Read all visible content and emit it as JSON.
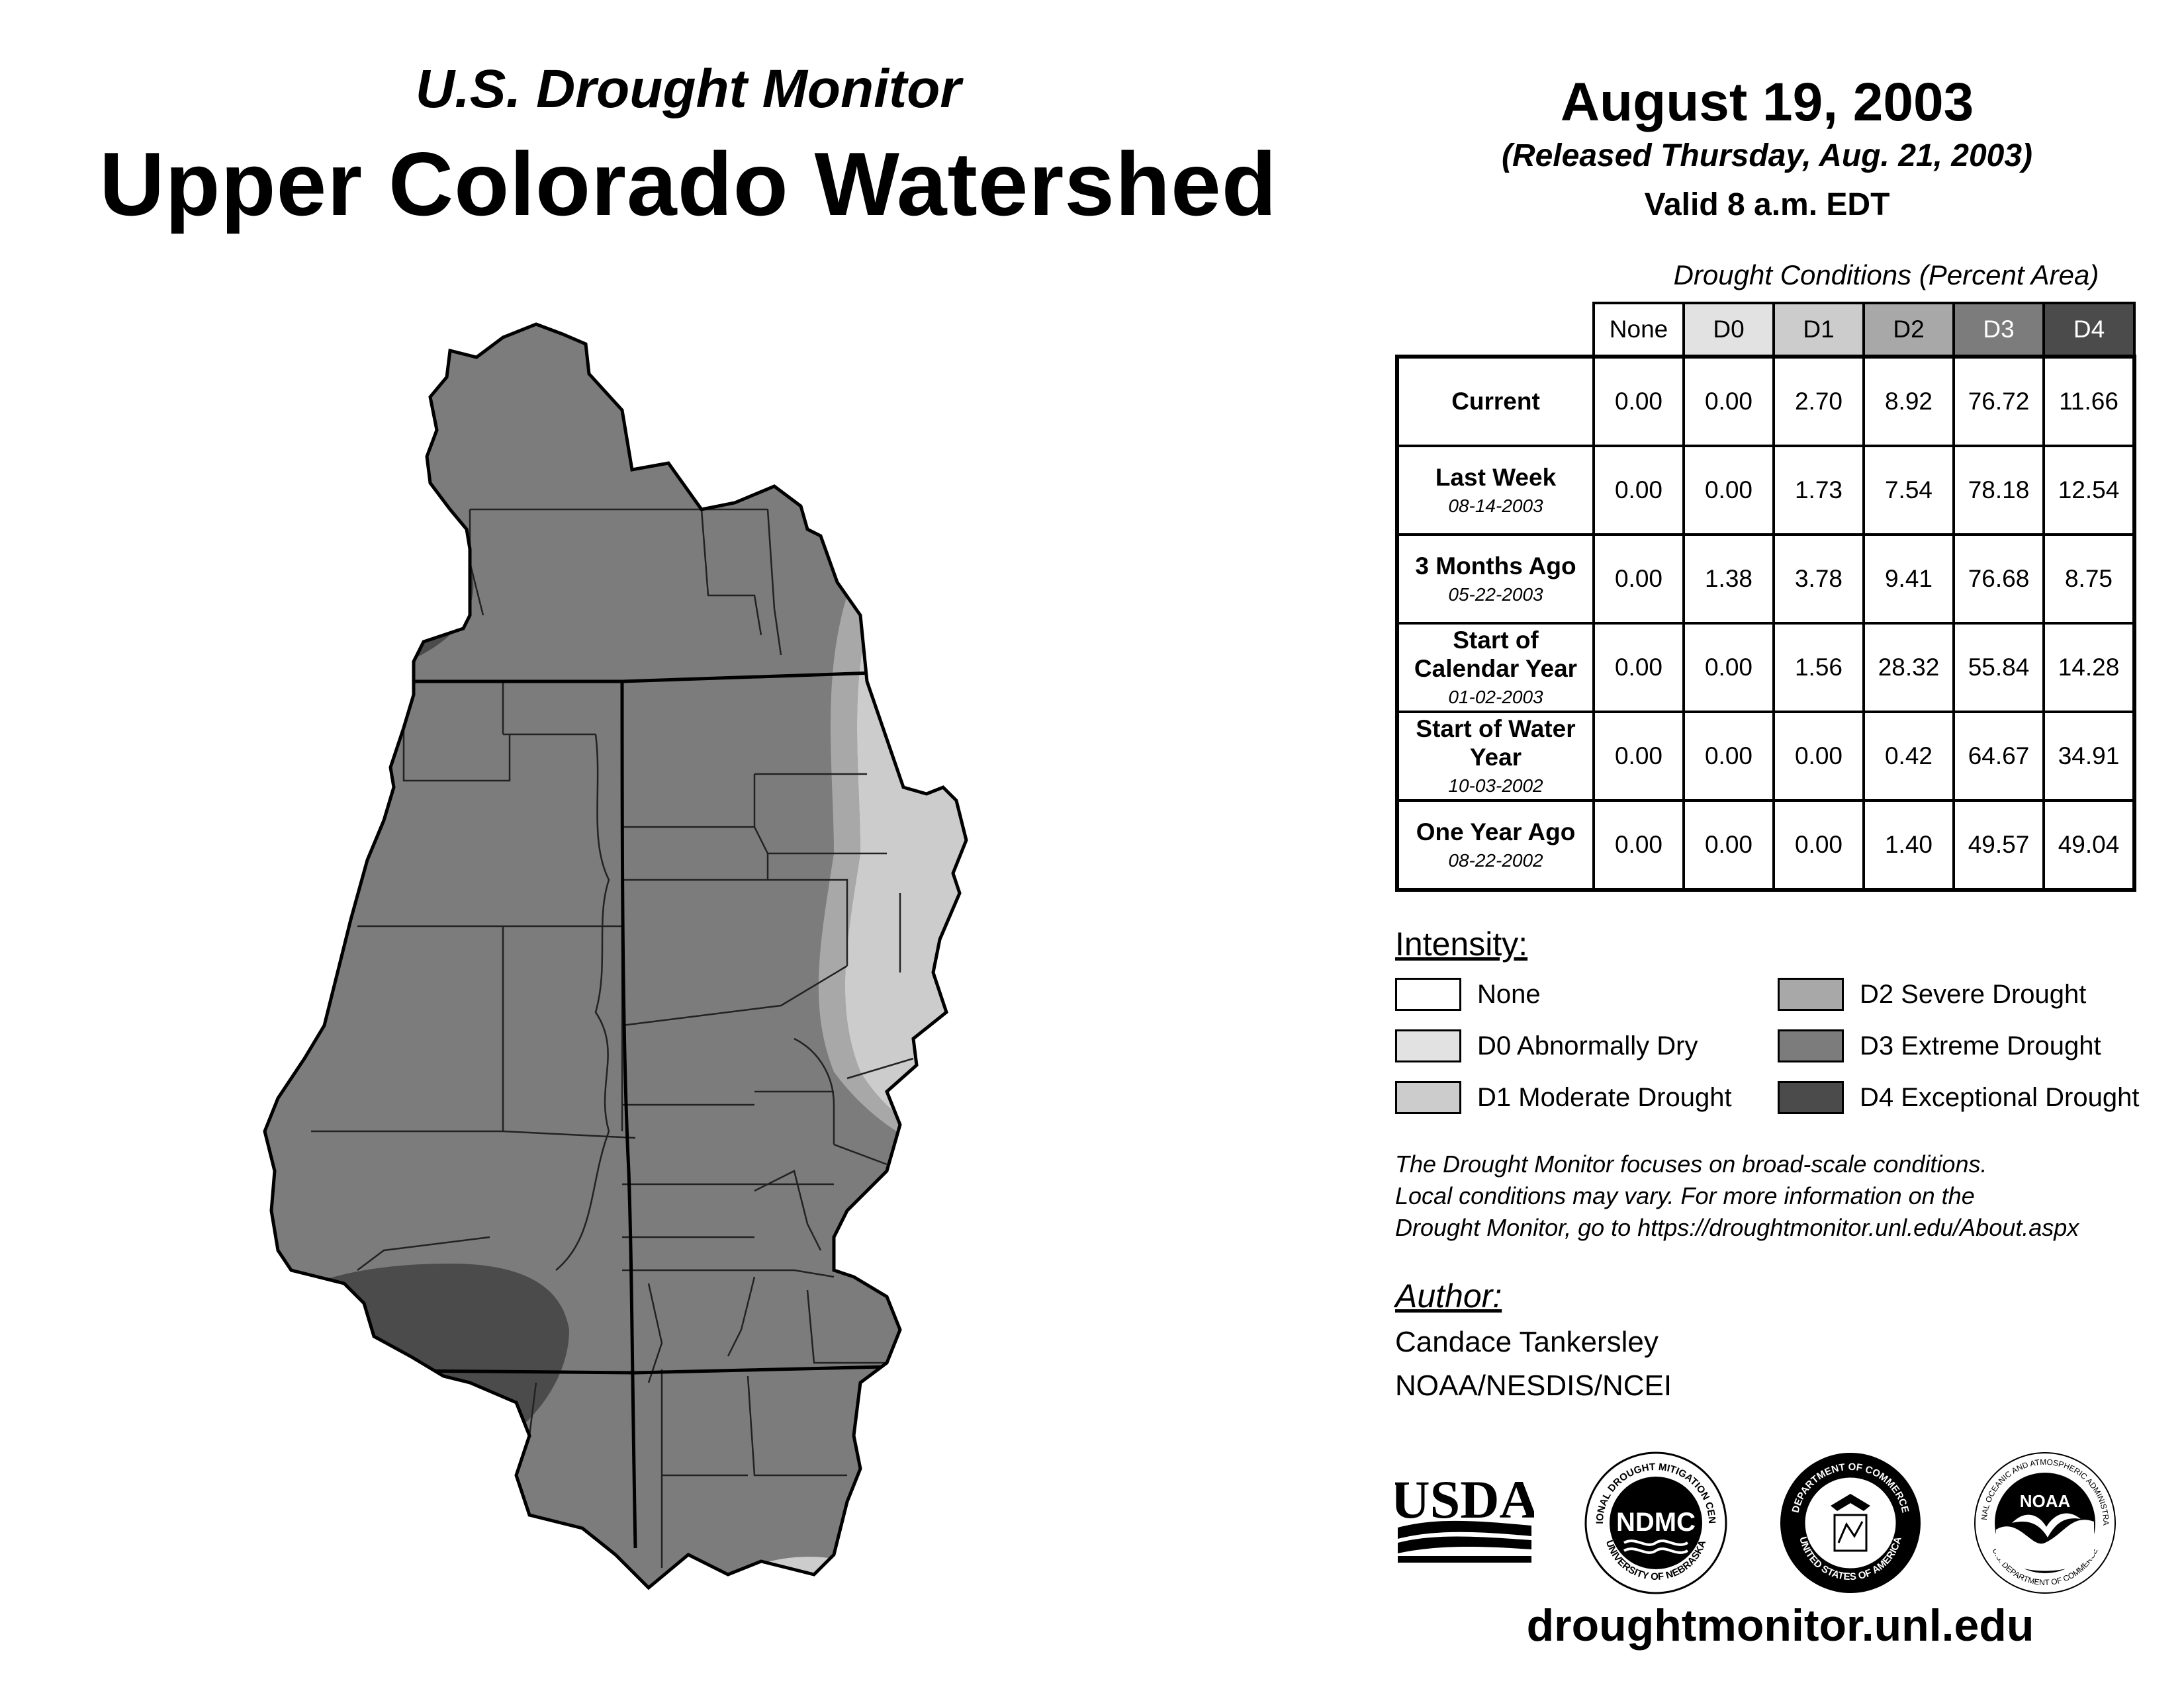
{
  "header": {
    "subtitle": "U.S. Drought Monitor",
    "title": "Upper Colorado Watershed",
    "date": "August 19, 2003",
    "released": "(Released Thursday, Aug. 21, 2003)",
    "valid": "Valid 8 a.m. EDT"
  },
  "table": {
    "caption": "Drought Conditions (Percent Area)",
    "columns": [
      "None",
      "D0",
      "D1",
      "D2",
      "D3",
      "D4"
    ],
    "rows": [
      {
        "label": "Current",
        "date": "",
        "values": [
          "0.00",
          "0.00",
          "2.70",
          "8.92",
          "76.72",
          "11.66"
        ]
      },
      {
        "label": "Last Week",
        "date": "08-14-2003",
        "values": [
          "0.00",
          "0.00",
          "1.73",
          "7.54",
          "78.18",
          "12.54"
        ]
      },
      {
        "label": "3 Months Ago",
        "date": "05-22-2003",
        "values": [
          "0.00",
          "1.38",
          "3.78",
          "9.41",
          "76.68",
          "8.75"
        ]
      },
      {
        "label": "Start of Calendar Year",
        "date": "01-02-2003",
        "values": [
          "0.00",
          "0.00",
          "1.56",
          "28.32",
          "55.84",
          "14.28"
        ]
      },
      {
        "label": "Start of Water Year",
        "date": "10-03-2002",
        "values": [
          "0.00",
          "0.00",
          "0.00",
          "0.42",
          "64.67",
          "34.91"
        ]
      },
      {
        "label": "One Year Ago",
        "date": "08-22-2002",
        "values": [
          "0.00",
          "0.00",
          "0.00",
          "1.40",
          "49.57",
          "49.04"
        ]
      }
    ]
  },
  "intensity": {
    "title": "Intensity:",
    "items": [
      {
        "label": "None",
        "color": "#ffffff"
      },
      {
        "label": "D0 Abnormally Dry",
        "color": "#e2e2e2"
      },
      {
        "label": "D1 Moderate Drought",
        "color": "#cccccc"
      },
      {
        "label": "D2 Severe Drought",
        "color": "#a8a8a8"
      },
      {
        "label": "D3 Extreme Drought",
        "color": "#7c7c7c"
      },
      {
        "label": "D4 Exceptional Drought",
        "color": "#4b4b4b"
      }
    ]
  },
  "note": {
    "line1": "The Drought Monitor focuses on broad-scale conditions.",
    "line2": "Local conditions may vary. For more information on the",
    "line3": "Drought Monitor, go to https://droughtmonitor.unl.edu/About.aspx"
  },
  "author": {
    "title": "Author:",
    "name": "Candace Tankersley",
    "org": "NOAA/NESDIS/NCEI"
  },
  "logos": {
    "usda": "USDA",
    "ndmc": "NDMC",
    "ndmc_ring_top": "NATIONAL DROUGHT MITIGATION CENTER",
    "ndmc_ring_bottom": "UNIVERSITY OF NEBRASKA",
    "doc_ring_top": "DEPARTMENT OF COMMERCE",
    "doc_ring_bottom": "UNITED STATES OF AMERICA",
    "noaa": "NOAA",
    "noaa_ring_top": "NATIONAL OCEANIC AND ATMOSPHERIC ADMINISTRATION",
    "noaa_ring_bottom": "U.S. DEPARTMENT OF COMMERCE"
  },
  "footer": {
    "website": "droughtmonitor.unl.edu"
  },
  "map": {
    "region": "Upper Colorado Watershed",
    "dominant_category": "D3 Extreme Drought",
    "colors": {
      "d1": "#cccccc",
      "d2": "#a8a8a8",
      "d3": "#7c7c7c",
      "d4": "#4b4b4b"
    }
  }
}
